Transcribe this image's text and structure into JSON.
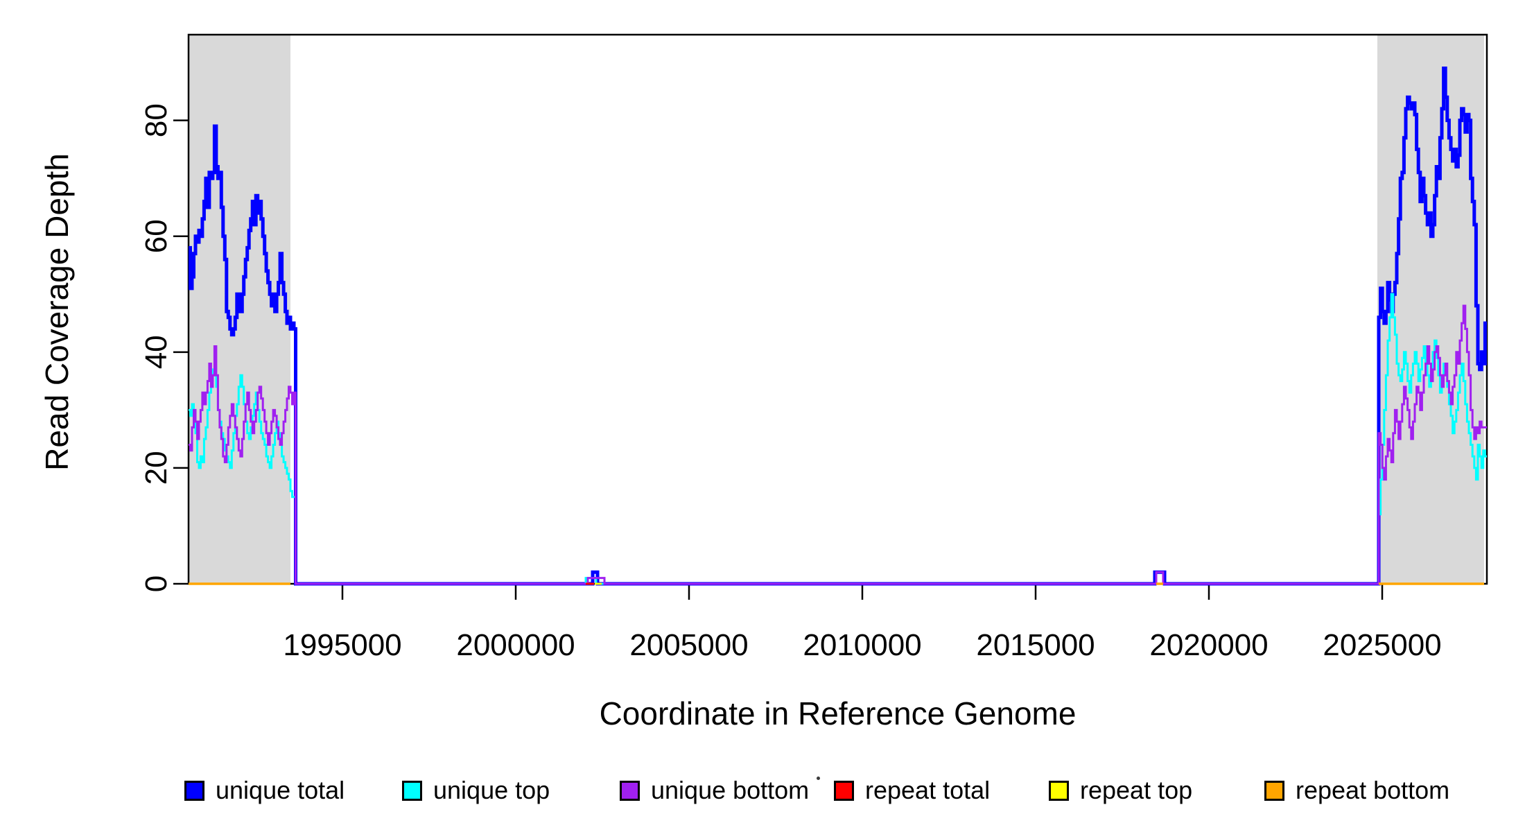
{
  "figure": {
    "background": "#ffffff",
    "stray_dot_glyph": "·"
  },
  "chart_data": {
    "type": "line",
    "step": true,
    "title": "",
    "xlabel": "Coordinate in Reference Genome",
    "ylabel": "Read Coverage Depth",
    "xlim": [
      1990560,
      2028020
    ],
    "ylim": [
      0,
      94.8
    ],
    "xticks": [
      1995000,
      2000000,
      2005000,
      2010000,
      2015000,
      2020000,
      2025000
    ],
    "yticks": [
      0,
      20,
      40,
      60,
      80
    ],
    "grid": false,
    "legend_position": "bottom",
    "box_color": "#000000",
    "shaded_regions": [
      {
        "name": "left-repeat-region",
        "x0": 1990560,
        "x1": 1993500,
        "color": "#d9d9d9"
      },
      {
        "name": "right-repeat-region",
        "x0": 2024860,
        "x1": 2027940,
        "color": "#d9d9d9"
      }
    ],
    "series": [
      {
        "name": "unique total",
        "color": "#0000ff",
        "line_width": 5,
        "runs": [
          {
            "x0": 1990560,
            "x1": 1993700,
            "values": [
              58,
              51,
              53,
              57,
              60,
              59,
              61,
              60,
              63,
              66,
              70,
              65,
              71,
              70,
              71,
              79,
              72,
              70,
              71,
              65,
              60,
              56,
              47,
              46,
              44,
              43,
              44,
              46,
              50,
              48,
              47,
              50,
              53,
              56,
              58,
              61,
              63,
              66,
              62,
              67,
              64,
              66,
              63,
              60,
              57,
              54,
              52,
              50,
              48,
              50,
              47,
              50,
              52,
              57,
              52,
              50,
              47,
              45,
              46,
              44,
              45,
              44,
              0
            ]
          },
          {
            "x0": 1993700,
            "x1": 2002220,
            "values": [
              0
            ]
          },
          {
            "x0": 2002220,
            "x1": 2002360,
            "values": [
              2
            ]
          },
          {
            "x0": 2002360,
            "x1": 2018440,
            "values": [
              0
            ]
          },
          {
            "x0": 2018440,
            "x1": 2018720,
            "values": [
              2
            ]
          },
          {
            "x0": 2018720,
            "x1": 2024900,
            "values": [
              0
            ]
          },
          {
            "x0": 2024900,
            "x1": 2028020,
            "values": [
              46,
              51,
              47,
              45,
              47,
              52,
              49,
              47,
              50,
              52,
              57,
              63,
              70,
              71,
              77,
              82,
              84,
              83,
              82,
              83,
              81,
              75,
              71,
              66,
              70,
              67,
              64,
              62,
              64,
              60,
              62,
              67,
              72,
              70,
              77,
              82,
              89,
              84,
              80,
              77,
              75,
              73,
              75,
              72,
              74,
              80,
              82,
              81,
              78,
              81,
              80,
              70,
              66,
              62,
              48,
              38,
              37,
              40,
              38,
              45
            ]
          }
        ]
      },
      {
        "name": "unique top",
        "color": "#00ffff",
        "line_width": 3,
        "runs": [
          {
            "x0": 1990560,
            "x1": 1993700,
            "values": [
              30,
              29,
              31,
              28,
              26,
              21,
              20,
              22,
              21,
              25,
              27,
              30,
              33,
              35,
              37,
              36,
              34,
              30,
              28,
              26,
              25,
              23,
              22,
              21,
              20,
              23,
              26,
              29,
              31,
              34,
              36,
              34,
              31,
              28,
              26,
              25,
              27,
              29,
              31,
              33,
              30,
              28,
              26,
              25,
              24,
              22,
              21,
              20,
              22,
              24,
              26,
              28,
              26,
              24,
              22,
              21,
              20,
              19,
              18,
              16,
              15,
              15,
              0
            ]
          },
          {
            "x0": 1993700,
            "x1": 2002020,
            "values": [
              0
            ]
          },
          {
            "x0": 2002020,
            "x1": 2002320,
            "values": [
              1
            ]
          },
          {
            "x0": 2002320,
            "x1": 2024900,
            "values": [
              0
            ]
          },
          {
            "x0": 2024900,
            "x1": 2028020,
            "values": [
              12,
              18,
              24,
              30,
              36,
              42,
              46,
              50,
              46,
              43,
              38,
              36,
              35,
              37,
              40,
              38,
              35,
              33,
              36,
              38,
              40,
              38,
              35,
              37,
              39,
              41,
              38,
              36,
              34,
              37,
              40,
              42,
              39,
              36,
              33,
              35,
              38,
              36,
              34,
              31,
              29,
              26,
              28,
              30,
              33,
              36,
              38,
              35,
              31,
              28,
              26,
              24,
              22,
              20,
              18,
              24,
              22,
              20,
              23,
              22
            ]
          }
        ]
      },
      {
        "name": "unique bottom",
        "color": "#a020f0",
        "line_width": 3,
        "runs": [
          {
            "x0": 1990560,
            "x1": 1993700,
            "values": [
              24,
              23,
              27,
              30,
              28,
              25,
              28,
              30,
              33,
              31,
              33,
              35,
              38,
              34,
              36,
              41,
              36,
              30,
              27,
              25,
              22,
              21,
              24,
              27,
              29,
              31,
              29,
              27,
              25,
              23,
              22,
              25,
              28,
              31,
              33,
              30,
              28,
              26,
              28,
              30,
              33,
              34,
              32,
              30,
              28,
              26,
              24,
              26,
              28,
              30,
              29,
              27,
              25,
              24,
              26,
              28,
              30,
              32,
              34,
              33,
              31,
              33,
              0
            ]
          },
          {
            "x0": 1993700,
            "x1": 2002080,
            "values": [
              0
            ]
          },
          {
            "x0": 2002080,
            "x1": 2002560,
            "values": [
              1
            ]
          },
          {
            "x0": 2002560,
            "x1": 2018480,
            "values": [
              0
            ]
          },
          {
            "x0": 2018480,
            "x1": 2018680,
            "values": [
              2
            ]
          },
          {
            "x0": 2018680,
            "x1": 2024900,
            "values": [
              0
            ]
          },
          {
            "x0": 2024900,
            "x1": 2028020,
            "values": [
              26,
              24,
              20,
              18,
              22,
              25,
              23,
              21,
              26,
              30,
              28,
              25,
              28,
              31,
              34,
              32,
              30,
              27,
              25,
              28,
              31,
              34,
              33,
              30,
              33,
              36,
              38,
              41,
              38,
              35,
              37,
              40,
              41,
              39,
              36,
              34,
              36,
              38,
              35,
              33,
              31,
              34,
              36,
              40,
              38,
              42,
              45,
              48,
              44,
              40,
              36,
              30,
              27,
              25,
              27,
              26,
              28,
              27,
              27,
              27
            ]
          }
        ]
      },
      {
        "name": "repeat total",
        "color": "#ff0000",
        "line_width": 3,
        "runs": [
          {
            "x0": 2002020,
            "x1": 2002260,
            "values": [
              0
            ]
          }
        ]
      },
      {
        "name": "repeat top",
        "color": "#ffff00",
        "line_width": 3,
        "runs": [
          {
            "x0": 2002280,
            "x1": 2002480,
            "values": [
              0
            ]
          }
        ]
      },
      {
        "name": "repeat bottom",
        "color": "#ffa500",
        "line_width": 3.5,
        "runs": [
          {
            "x0": 1990560,
            "x1": 1993500,
            "values": [
              0
            ]
          },
          {
            "x0": 2018480,
            "x1": 2018680,
            "values": [
              0
            ]
          },
          {
            "x0": 2024900,
            "x1": 2027940,
            "values": [
              0
            ]
          }
        ]
      }
    ]
  }
}
